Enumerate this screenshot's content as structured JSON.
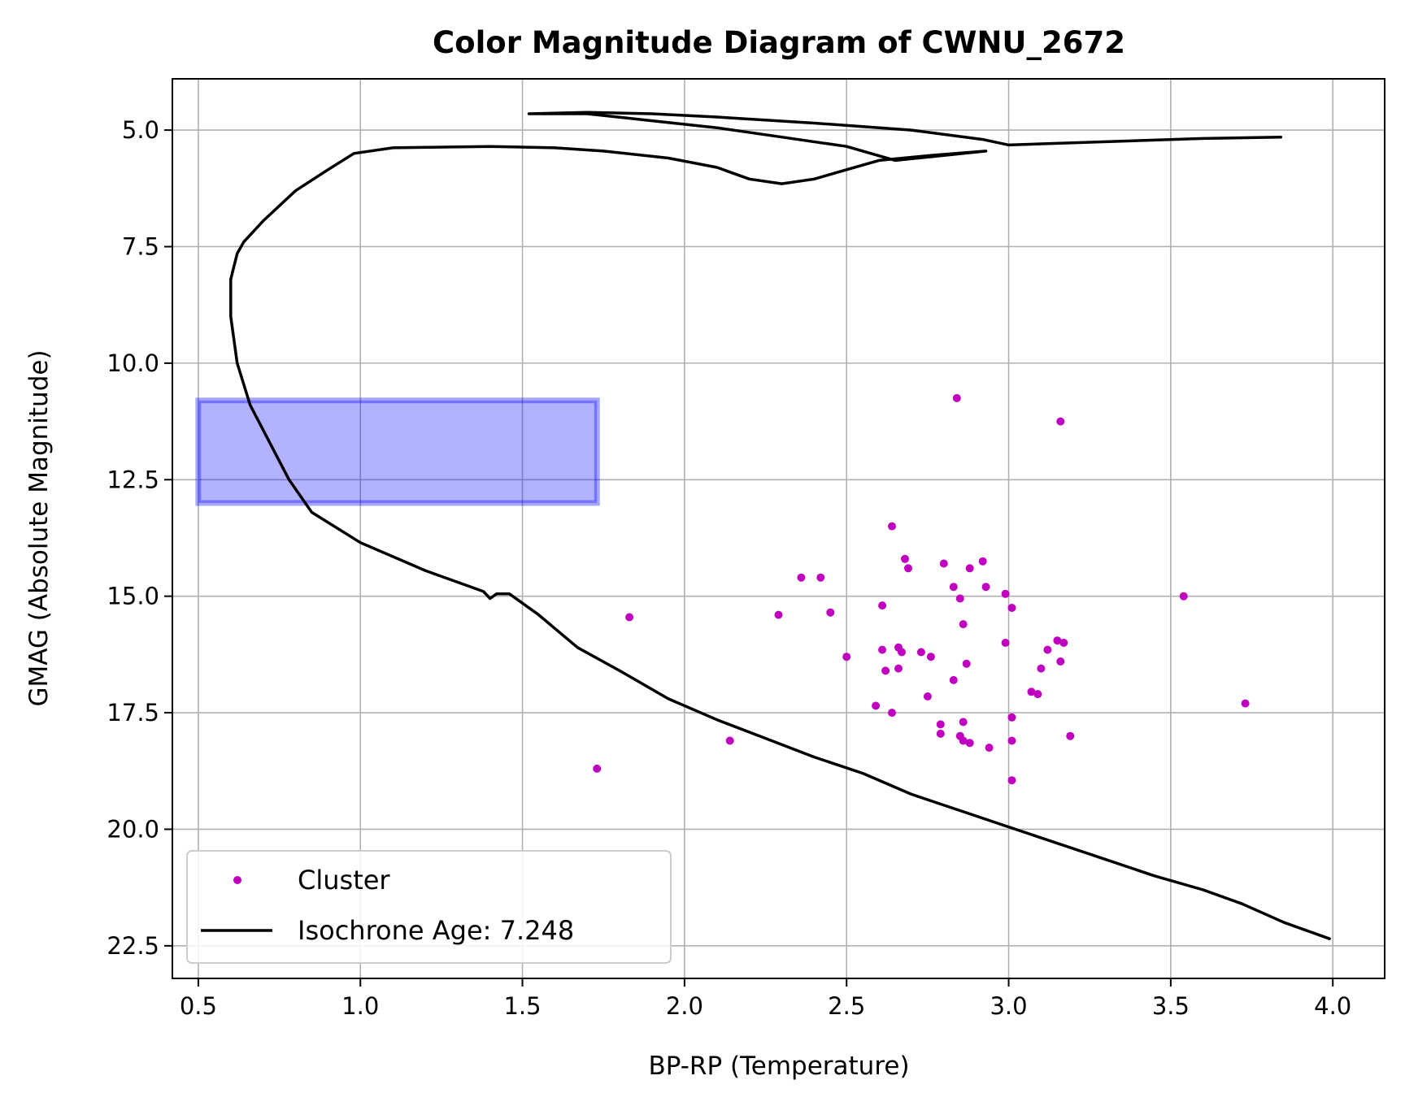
{
  "chart_data": {
    "type": "scatter",
    "title": "Color Magnitude Diagram of CWNU_2672",
    "xlabel": "BP-RP (Temperature)",
    "ylabel": "GMAG (Absolute Magnitude)",
    "xlim": [
      0.42,
      4.16
    ],
    "ylim": [
      23.2,
      3.9
    ],
    "y_inverted": true,
    "grid": true,
    "legend_position": "lower-left",
    "xticks": [
      0.5,
      1.0,
      1.5,
      2.0,
      2.5,
      3.0,
      3.5,
      4.0
    ],
    "xtick_labels": [
      "0.5",
      "1.0",
      "1.5",
      "2.0",
      "2.5",
      "3.0",
      "3.5",
      "4.0"
    ],
    "yticks": [
      5.0,
      7.5,
      10.0,
      12.5,
      15.0,
      17.5,
      20.0,
      22.5
    ],
    "ytick_labels": [
      "5.0",
      "7.5",
      "10.0",
      "12.5",
      "15.0",
      "17.5",
      "20.0",
      "22.5"
    ],
    "highlight_box": {
      "x": [
        0.5,
        1.73
      ],
      "y": [
        10.8,
        13.0
      ],
      "color": "#0000ff"
    },
    "series": [
      {
        "name": "Cluster",
        "kind": "scatter",
        "color": "#bf00bf",
        "points": [
          [
            2.84,
            10.75
          ],
          [
            3.16,
            11.25
          ],
          [
            2.64,
            13.5
          ],
          [
            2.68,
            14.2
          ],
          [
            2.69,
            14.4
          ],
          [
            2.8,
            14.3
          ],
          [
            2.92,
            14.25
          ],
          [
            2.88,
            14.4
          ],
          [
            2.36,
            14.6
          ],
          [
            2.42,
            14.6
          ],
          [
            2.83,
            14.8
          ],
          [
            2.93,
            14.8
          ],
          [
            2.85,
            15.05
          ],
          [
            2.99,
            14.95
          ],
          [
            2.61,
            15.2
          ],
          [
            3.01,
            15.25
          ],
          [
            2.45,
            15.35
          ],
          [
            2.29,
            15.4
          ],
          [
            1.83,
            15.45
          ],
          [
            2.86,
            15.6
          ],
          [
            3.54,
            15.0
          ],
          [
            2.99,
            16.0
          ],
          [
            3.15,
            15.95
          ],
          [
            3.17,
            16.0
          ],
          [
            2.61,
            16.15
          ],
          [
            2.66,
            16.1
          ],
          [
            2.67,
            16.2
          ],
          [
            2.73,
            16.2
          ],
          [
            3.12,
            16.15
          ],
          [
            2.5,
            16.3
          ],
          [
            2.76,
            16.3
          ],
          [
            2.87,
            16.45
          ],
          [
            3.16,
            16.4
          ],
          [
            2.62,
            16.6
          ],
          [
            2.66,
            16.55
          ],
          [
            3.1,
            16.55
          ],
          [
            2.83,
            16.8
          ],
          [
            3.07,
            17.05
          ],
          [
            3.09,
            17.1
          ],
          [
            2.75,
            17.15
          ],
          [
            3.73,
            17.3
          ],
          [
            2.59,
            17.35
          ],
          [
            2.64,
            17.5
          ],
          [
            2.79,
            17.75
          ],
          [
            2.86,
            17.7
          ],
          [
            3.01,
            17.6
          ],
          [
            2.79,
            17.95
          ],
          [
            2.85,
            18.0
          ],
          [
            2.86,
            18.1
          ],
          [
            2.88,
            18.15
          ],
          [
            3.01,
            18.1
          ],
          [
            3.19,
            18.0
          ],
          [
            2.94,
            18.25
          ],
          [
            2.14,
            18.1
          ],
          [
            1.73,
            18.7
          ],
          [
            3.01,
            18.95
          ]
        ]
      },
      {
        "name": "Isochrone Age: 7.248",
        "kind": "line",
        "color": "#000000",
        "points": [
          [
            3.99,
            22.35
          ],
          [
            3.85,
            22.0
          ],
          [
            3.72,
            21.6
          ],
          [
            3.6,
            21.3
          ],
          [
            3.45,
            21.0
          ],
          [
            3.3,
            20.65
          ],
          [
            3.15,
            20.3
          ],
          [
            3.0,
            19.95
          ],
          [
            2.85,
            19.6
          ],
          [
            2.7,
            19.25
          ],
          [
            2.55,
            18.8
          ],
          [
            2.4,
            18.45
          ],
          [
            2.25,
            18.05
          ],
          [
            2.1,
            17.65
          ],
          [
            1.95,
            17.2
          ],
          [
            1.8,
            16.6
          ],
          [
            1.67,
            16.1
          ],
          [
            1.55,
            15.4
          ],
          [
            1.46,
            14.95
          ],
          [
            1.42,
            14.95
          ],
          [
            1.4,
            15.05
          ],
          [
            1.38,
            14.9
          ],
          [
            1.2,
            14.45
          ],
          [
            1.0,
            13.85
          ],
          [
            0.85,
            13.2
          ],
          [
            0.78,
            12.5
          ],
          [
            0.72,
            11.7
          ],
          [
            0.66,
            10.9
          ],
          [
            0.62,
            10.0
          ],
          [
            0.6,
            9.0
          ],
          [
            0.6,
            8.2
          ],
          [
            0.62,
            7.65
          ],
          [
            0.64,
            7.4
          ],
          [
            0.7,
            6.95
          ],
          [
            0.8,
            6.3
          ],
          [
            0.9,
            5.85
          ],
          [
            0.98,
            5.5
          ],
          [
            1.1,
            5.38
          ],
          [
            1.4,
            5.35
          ],
          [
            1.6,
            5.38
          ],
          [
            1.75,
            5.45
          ],
          [
            1.95,
            5.6
          ],
          [
            2.1,
            5.8
          ],
          [
            2.2,
            6.05
          ],
          [
            2.3,
            6.15
          ],
          [
            2.4,
            6.05
          ],
          [
            2.5,
            5.85
          ],
          [
            2.6,
            5.65
          ],
          [
            2.75,
            5.55
          ],
          [
            2.93,
            5.45
          ],
          [
            2.65,
            5.65
          ],
          [
            2.5,
            5.35
          ],
          [
            2.3,
            5.15
          ],
          [
            2.1,
            4.95
          ],
          [
            1.9,
            4.8
          ],
          [
            1.7,
            4.65
          ],
          [
            1.52,
            4.65
          ],
          [
            1.7,
            4.62
          ],
          [
            1.9,
            4.65
          ],
          [
            2.1,
            4.72
          ],
          [
            2.4,
            4.85
          ],
          [
            2.7,
            5.0
          ],
          [
            2.92,
            5.2
          ],
          [
            3.0,
            5.32
          ],
          [
            3.3,
            5.25
          ],
          [
            3.6,
            5.18
          ],
          [
            3.84,
            5.15
          ]
        ]
      }
    ]
  }
}
